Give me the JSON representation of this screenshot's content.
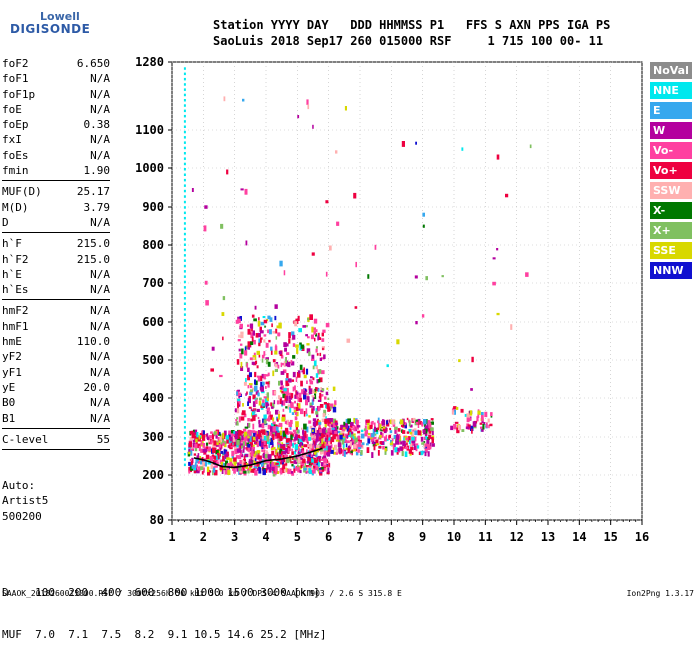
{
  "logo": {
    "line1": "Lowell",
    "line2": "DIGISONDE"
  },
  "header": {
    "line1": "Station YYYY DAY   DDD HHMMSS P1   FFS S AXN PPS IGA PS",
    "line2": "SaoLuis 2018 Sep17 260 015000 RSF     1 715 100 00- 11"
  },
  "params": [
    [
      {
        "k": "foF2",
        "v": "6.650"
      },
      {
        "k": "foF1",
        "v": "N/A"
      },
      {
        "k": "foF1p",
        "v": "N/A"
      },
      {
        "k": "foE",
        "v": "N/A"
      },
      {
        "k": "foEp",
        "v": "0.38"
      },
      {
        "k": "fxI",
        "v": "N/A"
      },
      {
        "k": "foEs",
        "v": "N/A"
      },
      {
        "k": "fmin",
        "v": "1.90"
      }
    ],
    [
      {
        "k": "MUF(D)",
        "v": "25.17"
      },
      {
        "k": "M(D)",
        "v": "3.79"
      },
      {
        "k": "D",
        "v": "N/A"
      }
    ],
    [
      {
        "k": "h`F",
        "v": "215.0"
      },
      {
        "k": "h`F2",
        "v": "215.0"
      },
      {
        "k": "h`E",
        "v": "N/A"
      },
      {
        "k": "h`Es",
        "v": "N/A"
      }
    ],
    [
      {
        "k": "hmF2",
        "v": "N/A"
      },
      {
        "k": "hmF1",
        "v": "N/A"
      },
      {
        "k": "hmE",
        "v": "110.0"
      },
      {
        "k": "yF2",
        "v": "N/A"
      },
      {
        "k": "yF1",
        "v": "N/A"
      },
      {
        "k": "yE",
        "v": "20.0"
      },
      {
        "k": "B0",
        "v": "N/A"
      },
      {
        "k": "B1",
        "v": "N/A"
      }
    ],
    [
      {
        "k": "C-level",
        "v": "55"
      }
    ]
  ],
  "auto": {
    "l1": "Auto:",
    "l2": "Artist5",
    "l3": "500200"
  },
  "legend": [
    {
      "label": "NoVal",
      "color": "#8c8c8c"
    },
    {
      "label": "NNE",
      "color": "#00e8ee"
    },
    {
      "label": "E",
      "color": "#36a8ee"
    },
    {
      "label": "W",
      "color": "#b4009e"
    },
    {
      "label": "Vo-",
      "color": "#ff40a0"
    },
    {
      "label": "Vo+",
      "color": "#ee0040"
    },
    {
      "label": "SSW",
      "color": "#ffb0b0"
    },
    {
      "label": "X-",
      "color": "#007800"
    },
    {
      "label": "X+",
      "color": "#80c060"
    },
    {
      "label": "SSE",
      "color": "#d8d800"
    },
    {
      "label": "NNW",
      "color": "#1010d0"
    }
  ],
  "dtable": {
    "line1": "D    100  200  400  600  800 1000 1500 3000 [km]",
    "line2": "MUF  7.0  7.1  7.5  8.2  9.1 10.5 14.6 25.2 [MHz]"
  },
  "footer": "SAAOK_2018260015000.RSF / 300fx256h 50 kHz 5.0 km / DPS-4 SAAOK 903 / 2.6 S 315.8 E",
  "version": "Ion2Png 1.3.17",
  "chart_data": {
    "type": "scatter",
    "x_ticks": [
      "1",
      "2",
      "3",
      "4",
      "5",
      "6",
      "7",
      "8",
      "9",
      "10",
      "11",
      "12",
      "13",
      "14",
      "15",
      "16"
    ],
    "y_ticks": [
      "80",
      "200",
      "300",
      "400",
      "500",
      "600",
      "700",
      "800",
      "900",
      "1000",
      "1100",
      "1280"
    ],
    "xlim": [
      1,
      16
    ],
    "ylim": [
      80,
      1280
    ],
    "grid": true,
    "trace": {
      "x": [
        1.7,
        2.0,
        2.3,
        2.6,
        3.0,
        3.5,
        4.0,
        4.5,
        5.0,
        5.5,
        5.8
      ],
      "y": [
        245,
        240,
        232,
        222,
        220,
        226,
        238,
        242,
        250,
        262,
        270
      ]
    },
    "clusters": [
      {
        "x0": 1.5,
        "x1": 6.0,
        "y0": 210,
        "y1": 320,
        "n": 900
      },
      {
        "x0": 5.5,
        "x1": 9.3,
        "y0": 260,
        "y1": 350,
        "n": 450
      },
      {
        "x0": 3.0,
        "x1": 5.8,
        "y0": 400,
        "y1": 620,
        "n": 260
      },
      {
        "x0": 3.0,
        "x1": 6.2,
        "y0": 300,
        "y1": 430,
        "n": 300
      },
      {
        "x0": 9.8,
        "x1": 11.2,
        "y0": 320,
        "y1": 380,
        "n": 60
      },
      {
        "x0": 1.6,
        "x1": 12.5,
        "y0": 420,
        "y1": 1200,
        "n": 70
      }
    ],
    "nne_points": {
      "x": 1.38,
      "y0": 230,
      "y1": 1270
    }
  }
}
